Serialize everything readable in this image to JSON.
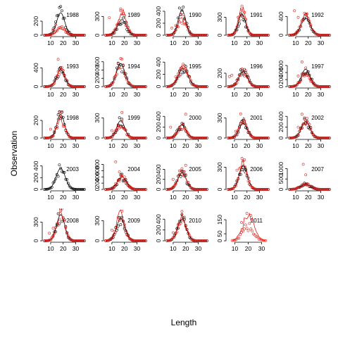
{
  "chart_data": {
    "type": "scatter",
    "xlabel": "Length",
    "ylabel": "Observation",
    "legend": "none",
    "grid": false,
    "series_colors": {
      "black": "#000000",
      "red": "#e0201b"
    },
    "panels": [
      {
        "year": "1988",
        "xlim": [
          5,
          37
        ],
        "ylim": [
          0,
          400
        ],
        "yticks": [
          0,
          200
        ],
        "xticks": [
          10,
          20,
          30
        ],
        "xs": [
          5,
          37
        ],
        "peak": 18,
        "sigma": 3.2,
        "black_curve_peak": 320,
        "red_curve_peak": 110,
        "black_pts_peak": 350,
        "red_pts_peak": 130,
        "red_outliers": [
          [
            12,
            90
          ],
          [
            14,
            150
          ]
        ]
      },
      {
        "year": "1989",
        "xlim": [
          5,
          37
        ],
        "ylim": [
          0,
          450
        ],
        "yticks": [
          0,
          300
        ],
        "xticks": [
          10,
          20,
          30
        ],
        "xs": [
          5,
          37
        ],
        "peak": 18,
        "sigma": 3.4,
        "black_curve_peak": 250,
        "red_curve_peak": 360,
        "black_pts_peak": 240,
        "red_pts_peak": 320,
        "red_outliers": [
          [
            8,
            280
          ],
          [
            17,
            420
          ]
        ]
      },
      {
        "year": "1990",
        "xlim": [
          5,
          37
        ],
        "ylim": [
          0,
          470
        ],
        "yticks": [
          0,
          200,
          400
        ],
        "xticks": [
          10,
          20,
          30
        ],
        "xs": [
          5,
          37
        ],
        "peak": 17,
        "sigma": 3.0,
        "black_curve_peak": 420,
        "red_curve_peak": 300,
        "black_pts_peak": 440,
        "red_pts_peak": 290,
        "red_outliers": [
          [
            9,
            120
          ],
          [
            12,
            160
          ]
        ]
      },
      {
        "year": "1991",
        "xlim": [
          5,
          37
        ],
        "ylim": [
          0,
          470
        ],
        "yticks": [
          0,
          300
        ],
        "xticks": [
          10,
          20,
          30
        ],
        "xs": [
          5,
          37
        ],
        "peak": 16,
        "sigma": 2.8,
        "black_curve_peak": 360,
        "red_curve_peak": 420,
        "black_pts_peak": 340,
        "red_pts_peak": 430,
        "red_outliers": [
          [
            13,
            300
          ],
          [
            18,
            380
          ]
        ]
      },
      {
        "year": "1992",
        "xlim": [
          5,
          37
        ],
        "ylim": [
          0,
          600
        ],
        "yticks": [
          0,
          400
        ],
        "xticks": [
          10,
          20,
          30
        ],
        "xs": [
          5,
          37
        ],
        "peak": 18,
        "sigma": 3.6,
        "black_curve_peak": 360,
        "red_curve_peak": 400,
        "black_pts_peak": 340,
        "red_pts_peak": 420,
        "red_outliers": [
          [
            9,
            520
          ],
          [
            12,
            380
          ]
        ]
      },
      {
        "year": "1993",
        "xlim": [
          5,
          37
        ],
        "ylim": [
          0,
          600
        ],
        "yticks": [
          0,
          400
        ],
        "xticks": [
          10,
          20,
          30
        ],
        "xs": [
          5,
          37
        ],
        "peak": 18,
        "sigma": 3.2,
        "black_curve_peak": 360,
        "red_curve_peak": 350,
        "black_pts_peak": 330,
        "red_pts_peak": 340,
        "red_outliers": [
          [
            16,
            580
          ]
        ]
      },
      {
        "year": "1994",
        "xlim": [
          5,
          37
        ],
        "ylim": [
          0,
          680
        ],
        "yticks": [
          0,
          200,
          400,
          600
        ],
        "xticks": [
          10,
          20,
          30
        ],
        "xs": [
          5,
          37
        ],
        "peak": 17,
        "sigma": 3.4,
        "black_curve_peak": 560,
        "red_curve_peak": 520,
        "black_pts_peak": 520,
        "red_pts_peak": 560,
        "red_outliers": [
          [
            12,
            220
          ]
        ]
      },
      {
        "year": "1995",
        "xlim": [
          5,
          37
        ],
        "ylim": [
          0,
          460
        ],
        "yticks": [
          0,
          200,
          400
        ],
        "xticks": [
          10,
          20,
          30
        ],
        "xs": [
          5,
          37
        ],
        "peak": 18,
        "sigma": 3.8,
        "black_curve_peak": 300,
        "red_curve_peak": 320,
        "black_pts_peak": 300,
        "red_pts_peak": 310,
        "red_outliers": [
          [
            12,
            160
          ]
        ]
      },
      {
        "year": "1996",
        "xlim": [
          5,
          37
        ],
        "ylim": [
          0,
          420
        ],
        "yticks": [
          0,
          200
        ],
        "xticks": [
          10,
          20,
          30
        ],
        "xs": [
          5,
          37
        ],
        "peak": 17,
        "sigma": 3.4,
        "black_curve_peak": 230,
        "red_curve_peak": 210,
        "black_pts_peak": 230,
        "red_pts_peak": 220,
        "red_outliers": [
          [
            6,
            150
          ],
          [
            8,
            170
          ]
        ]
      },
      {
        "year": "1997",
        "xlim": [
          5,
          37
        ],
        "ylim": [
          0,
          800
        ],
        "yticks": [
          0,
          200,
          400,
          600
        ],
        "xticks": [
          10,
          20,
          30
        ],
        "xs": [
          5,
          37
        ],
        "peak": 18,
        "sigma": 3.4,
        "black_curve_peak": 500,
        "red_curve_peak": 400,
        "black_pts_peak": 480,
        "red_pts_peak": 420,
        "red_outliers": [
          [
            15,
            700
          ],
          [
            12,
            300
          ]
        ]
      },
      {
        "year": "1998",
        "xlim": [
          5,
          37
        ],
        "ylim": [
          0,
          320
        ],
        "yticks": [
          0,
          200
        ],
        "xticks": [
          10,
          20,
          30
        ],
        "xs": [
          5,
          37
        ],
        "peak": 18,
        "sigma": 3.0,
        "black_curve_peak": 270,
        "red_curve_peak": 230,
        "black_pts_peak": 270,
        "red_pts_peak": 240,
        "red_outliers": [
          [
            10,
            100
          ]
        ]
      },
      {
        "year": "1999",
        "xlim": [
          5,
          37
        ],
        "ylim": [
          0,
          420
        ],
        "yticks": [
          0,
          300
        ],
        "xticks": [
          10,
          20,
          30
        ],
        "xs": [
          5,
          37
        ],
        "peak": 17,
        "sigma": 3.2,
        "black_curve_peak": 260,
        "red_curve_peak": 220,
        "black_pts_peak": 250,
        "red_pts_peak": 210,
        "red_outliers": [
          [
            18,
            380
          ],
          [
            10,
            110
          ]
        ]
      },
      {
        "year": "2000",
        "xlim": [
          5,
          37
        ],
        "ylim": [
          0,
          520
        ],
        "yticks": [
          0,
          200,
          400
        ],
        "xticks": [
          10,
          20,
          30
        ],
        "xs": [
          5,
          37
        ],
        "peak": 17,
        "sigma": 3.2,
        "black_curve_peak": 240,
        "red_curve_peak": 220,
        "black_pts_peak": 230,
        "red_pts_peak": 220,
        "red_outliers": [
          [
            8,
            200
          ],
          [
            20,
            440
          ]
        ]
      },
      {
        "year": "2001",
        "xlim": [
          5,
          37
        ],
        "ylim": [
          0,
          420
        ],
        "yticks": [
          0,
          300
        ],
        "xticks": [
          10,
          20,
          30
        ],
        "xs": [
          5,
          37
        ],
        "peak": 17,
        "sigma": 3.2,
        "black_curve_peak": 220,
        "red_curve_peak": 260,
        "black_pts_peak": 210,
        "red_pts_peak": 260,
        "red_outliers": [
          [
            15,
            360
          ],
          [
            11,
            100
          ]
        ]
      },
      {
        "year": "2002",
        "xlim": [
          5,
          37
        ],
        "ylim": [
          0,
          520
        ],
        "yticks": [
          0,
          200,
          400
        ],
        "xticks": [
          10,
          20,
          30
        ],
        "xs": [
          5,
          37
        ],
        "peak": 18,
        "sigma": 3.4,
        "black_curve_peak": 310,
        "red_curve_peak": 300,
        "black_pts_peak": 300,
        "red_pts_peak": 300,
        "red_outliers": [
          [
            15,
            440
          ],
          [
            12,
            200
          ]
        ]
      },
      {
        "year": "2003",
        "xlim": [
          5,
          37
        ],
        "ylim": [
          0,
          480
        ],
        "yticks": [
          0,
          200,
          400
        ],
        "xticks": [
          10,
          20,
          30
        ],
        "xs": [
          5,
          37
        ],
        "peak": 18,
        "sigma": 3.6,
        "black_curve_peak": 360,
        "red_curve_peak": 0,
        "black_pts_peak": 340,
        "red_pts_peak": 0,
        "red_outliers": []
      },
      {
        "year": "2004",
        "xlim": [
          5,
          37
        ],
        "ylim": [
          0,
          900
        ],
        "yticks": [
          0,
          200,
          400,
          600,
          800
        ],
        "xticks": [
          10,
          20,
          30
        ],
        "xs": [
          5,
          37
        ],
        "peak": 18,
        "sigma": 3.6,
        "black_curve_peak": 400,
        "red_curve_peak": 380,
        "black_pts_peak": 380,
        "red_pts_peak": 380,
        "red_outliers": [
          [
            13,
            880
          ],
          [
            16,
            560
          ]
        ]
      },
      {
        "year": "2005",
        "xlim": [
          5,
          37
        ],
        "ylim": [
          0,
          560
        ],
        "yticks": [
          0,
          200,
          400
        ],
        "xticks": [
          10,
          20,
          30
        ],
        "xs": [
          5,
          37
        ],
        "peak": 17,
        "sigma": 3.4,
        "black_curve_peak": 330,
        "red_curve_peak": 340,
        "black_pts_peak": 320,
        "red_pts_peak": 340,
        "red_outliers": [
          [
            10,
            200
          ],
          [
            20,
            480
          ]
        ]
      },
      {
        "year": "2006",
        "xlim": [
          5,
          37
        ],
        "ylim": [
          0,
          380
        ],
        "yticks": [
          0,
          300
        ],
        "xticks": [
          10,
          20,
          30
        ],
        "xs": [
          5,
          37
        ],
        "peak": 17,
        "sigma": 3.2,
        "black_curve_peak": 330,
        "red_curve_peak": 340,
        "black_pts_peak": 330,
        "red_pts_peak": 340,
        "red_outliers": [
          [
            12,
            260
          ]
        ]
      },
      {
        "year": "2007",
        "xlim": [
          5,
          37
        ],
        "ylim": [
          0,
          1350
        ],
        "yticks": [
          0,
          500,
          1000
        ],
        "xticks": [
          10,
          20,
          30
        ],
        "xs": [
          5,
          37
        ],
        "peak": 18,
        "sigma": 4.0,
        "black_curve_peak": 250,
        "red_curve_peak": 230,
        "black_pts_peak": 240,
        "red_pts_peak": 230,
        "red_outliers": [
          [
            16,
            1200
          ],
          [
            18,
            700
          ]
        ]
      },
      {
        "year": "2008",
        "xlim": [
          5,
          37
        ],
        "ylim": [
          0,
          450
        ],
        "yticks": [
          0,
          300
        ],
        "xticks": [
          10,
          20,
          30
        ],
        "xs": [
          5,
          37
        ],
        "peak": 18,
        "sigma": 3.2,
        "black_curve_peak": 420,
        "red_curve_peak": 420,
        "black_pts_peak": 410,
        "red_pts_peak": 430,
        "red_outliers": [
          [
            12,
            200
          ],
          [
            9,
            120
          ]
        ]
      },
      {
        "year": "2009",
        "xlim": [
          5,
          37
        ],
        "ylim": [
          0,
          420
        ],
        "yticks": [
          0,
          300
        ],
        "xticks": [
          10,
          20,
          30
        ],
        "xs": [
          5,
          37
        ],
        "peak": 17,
        "sigma": 3.4,
        "black_curve_peak": 330,
        "red_curve_peak": 380,
        "black_pts_peak": 320,
        "red_pts_peak": 360,
        "red_outliers": [
          [
            10,
            160
          ],
          [
            20,
            240
          ]
        ]
      },
      {
        "year": "2010",
        "xlim": [
          5,
          37
        ],
        "ylim": [
          0,
          520
        ],
        "yticks": [
          0,
          200,
          400
        ],
        "xticks": [
          10,
          20,
          30
        ],
        "xs": [
          5,
          37
        ],
        "peak": 17,
        "sigma": 3.4,
        "black_curve_peak": 400,
        "red_curve_peak": 420,
        "black_pts_peak": 420,
        "red_pts_peak": 430,
        "red_outliers": [
          [
            10,
            150
          ],
          [
            14,
            300
          ]
        ]
      },
      {
        "year": "2011",
        "xlim": [
          5,
          35
        ],
        "ylim": [
          0,
          200
        ],
        "yticks": [
          0,
          50,
          150
        ],
        "xticks": [
          10,
          20,
          30
        ],
        "xs": [
          8,
          33
        ],
        "peak": 20,
        "sigma": 4.2,
        "black_curve_peak": 0,
        "red_curve_peak": 170,
        "black_pts_peak": 0,
        "red_pts_peak": 100,
        "red_outliers": [
          [
            19,
            195
          ],
          [
            22,
            180
          ],
          [
            15,
            130
          ]
        ]
      }
    ]
  }
}
